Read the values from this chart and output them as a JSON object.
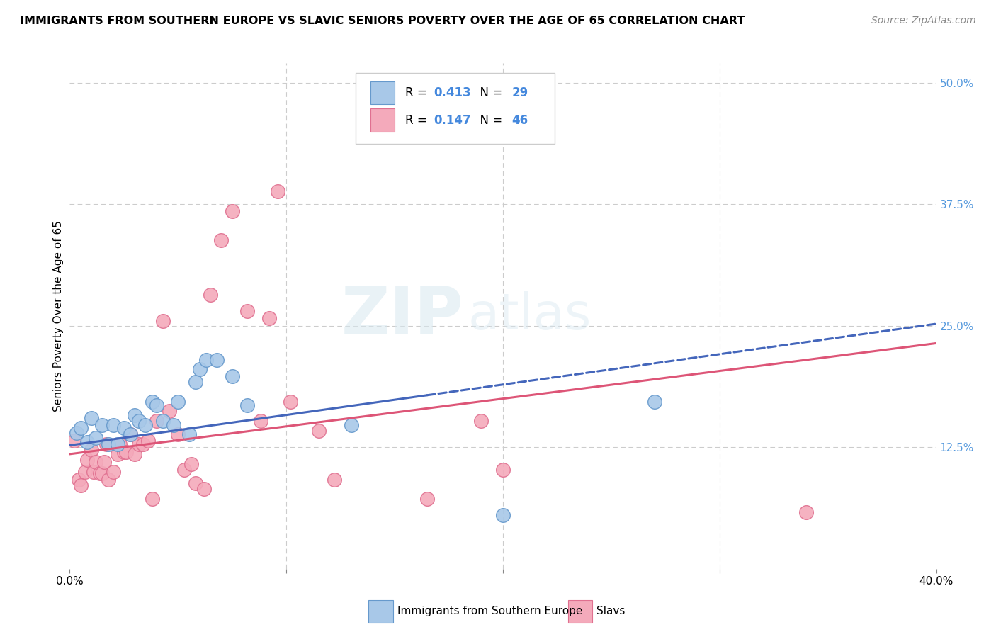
{
  "title": "IMMIGRANTS FROM SOUTHERN EUROPE VS SLAVIC SENIORS POVERTY OVER THE AGE OF 65 CORRELATION CHART",
  "source": "Source: ZipAtlas.com",
  "ylabel": "Seniors Poverty Over the Age of 65",
  "yticks": [
    0.0,
    0.125,
    0.25,
    0.375,
    0.5
  ],
  "ytick_labels": [
    "",
    "12.5%",
    "25.0%",
    "37.5%",
    "50.0%"
  ],
  "xlim": [
    0.0,
    0.4
  ],
  "ylim": [
    0.0,
    0.52
  ],
  "series1_color": "#a8c8e8",
  "series1_edge": "#6699cc",
  "series2_color": "#f4aabb",
  "series2_edge": "#e07090",
  "trendline1_color": "#4466bb",
  "trendline2_color": "#dd5577",
  "watermark_zip": "ZIP",
  "watermark_atlas": "atlas",
  "blue_points_x": [
    0.003,
    0.005,
    0.008,
    0.01,
    0.012,
    0.015,
    0.018,
    0.02,
    0.022,
    0.025,
    0.028,
    0.03,
    0.032,
    0.035,
    0.038,
    0.04,
    0.043,
    0.048,
    0.05,
    0.055,
    0.058,
    0.06,
    0.063,
    0.068,
    0.075,
    0.082,
    0.13,
    0.2,
    0.27
  ],
  "blue_points_y": [
    0.14,
    0.145,
    0.13,
    0.155,
    0.135,
    0.148,
    0.128,
    0.148,
    0.128,
    0.145,
    0.138,
    0.158,
    0.152,
    0.148,
    0.172,
    0.168,
    0.152,
    0.148,
    0.172,
    0.138,
    0.192,
    0.205,
    0.215,
    0.215,
    0.198,
    0.168,
    0.148,
    0.055,
    0.172
  ],
  "pink_points_x": [
    0.002,
    0.004,
    0.005,
    0.007,
    0.008,
    0.01,
    0.011,
    0.012,
    0.014,
    0.015,
    0.016,
    0.017,
    0.018,
    0.02,
    0.022,
    0.023,
    0.025,
    0.026,
    0.028,
    0.03,
    0.032,
    0.034,
    0.036,
    0.038,
    0.04,
    0.043,
    0.046,
    0.05,
    0.053,
    0.056,
    0.058,
    0.062,
    0.065,
    0.07,
    0.075,
    0.082,
    0.088,
    0.092,
    0.096,
    0.102,
    0.115,
    0.122,
    0.165,
    0.19,
    0.2,
    0.34
  ],
  "pink_points_y": [
    0.132,
    0.092,
    0.086,
    0.1,
    0.112,
    0.122,
    0.1,
    0.11,
    0.098,
    0.098,
    0.11,
    0.128,
    0.092,
    0.1,
    0.118,
    0.128,
    0.12,
    0.12,
    0.138,
    0.118,
    0.128,
    0.128,
    0.132,
    0.072,
    0.152,
    0.255,
    0.162,
    0.138,
    0.102,
    0.108,
    0.088,
    0.082,
    0.282,
    0.338,
    0.368,
    0.265,
    0.152,
    0.258,
    0.388,
    0.172,
    0.142,
    0.092,
    0.072,
    0.152,
    0.102,
    0.058
  ],
  "trendline1_y_start": 0.127,
  "trendline1_y_end": 0.252,
  "trendline1_solid_end_x": 0.165,
  "trendline2_y_start": 0.118,
  "trendline2_y_end": 0.232,
  "background_color": "#ffffff",
  "grid_color": "#cccccc",
  "title_fontsize": 11.5,
  "axis_label_fontsize": 11,
  "tick_fontsize": 11,
  "source_fontsize": 10,
  "legend_r1": "R = 0.413",
  "legend_n1": "N = 29",
  "legend_r2": "R = 0.147",
  "legend_n2": "N = 46",
  "legend_label1": "Immigrants from Southern Europe",
  "legend_label2": "Slavs"
}
